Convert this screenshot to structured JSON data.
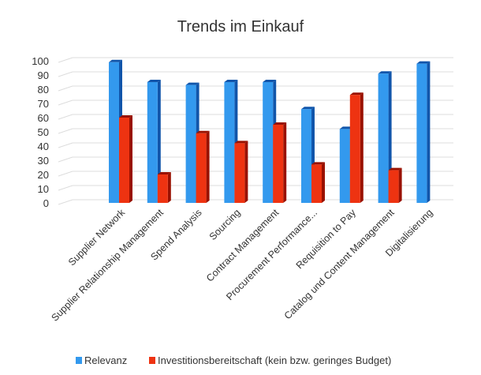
{
  "chart_data": {
    "type": "bar",
    "title": "Trends im Einkauf",
    "xlabel": "",
    "ylabel": "",
    "ylim": [
      0,
      100
    ],
    "yticks": [
      0,
      10,
      20,
      30,
      40,
      50,
      60,
      70,
      80,
      90,
      100
    ],
    "grid": true,
    "legend_placement": "bottom",
    "categories": [
      "Supplier Network",
      "Supplier Relationship Management",
      "Spend Analysis",
      "Sourcing",
      "Contract Management",
      "Procurement Performance...",
      "Requisition to Pay",
      "Catalog und Content Management",
      "Digitalisierung"
    ],
    "series": [
      {
        "name": "Relevanz",
        "color": "#3399ee",
        "values": [
          99,
          85,
          83,
          85,
          85,
          66,
          52,
          91,
          98
        ]
      },
      {
        "name": "Investitionsbereitschaft (kein bzw. geringes Budget)",
        "color": "#ee3311",
        "values": [
          60,
          20,
          49,
          42,
          55,
          27,
          76,
          23,
          null
        ]
      }
    ]
  }
}
